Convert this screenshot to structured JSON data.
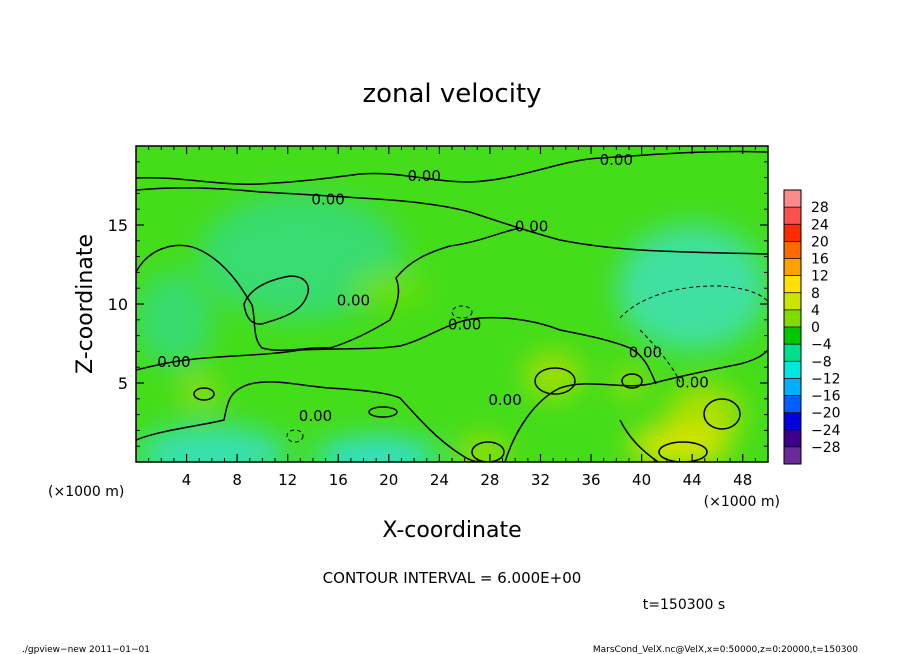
{
  "chart_data": {
    "type": "heatmap",
    "title": "zonal velocity",
    "xlabel": "X-coordinate",
    "ylabel": "Z-coordinate",
    "x_unit": "(×1000 m)",
    "xlim": [
      0,
      50
    ],
    "ylim": [
      0,
      20
    ],
    "x_ticks": [
      4,
      8,
      12,
      16,
      20,
      24,
      28,
      32,
      36,
      40,
      44,
      48
    ],
    "y_ticks": [
      5,
      10,
      15
    ],
    "contour_interval_label": "CONTOUR INTERVAL = 6.000E+00",
    "time_label": "t=150300 s",
    "contour_labels": [
      {
        "text": "0.00",
        "x": 22.8,
        "y": 17.8
      },
      {
        "text": "0.00",
        "x": 15.2,
        "y": 16.3
      },
      {
        "text": "0.00",
        "x": 38.0,
        "y": 18.8
      },
      {
        "text": "0.00",
        "x": 31.3,
        "y": 14.6
      },
      {
        "text": "0.00",
        "x": 17.2,
        "y": 9.9
      },
      {
        "text": "0.00",
        "x": 26.0,
        "y": 8.4
      },
      {
        "text": "0.00",
        "x": 3.0,
        "y": 6.0
      },
      {
        "text": "0.00",
        "x": 40.3,
        "y": 6.6
      },
      {
        "text": "0.00",
        "x": 44.0,
        "y": 4.7
      },
      {
        "text": "0.00",
        "x": 29.2,
        "y": 3.6
      },
      {
        "text": "0.00",
        "x": 14.2,
        "y": 2.6
      }
    ],
    "colorbar": {
      "levels": [
        "28",
        "24",
        "20",
        "16",
        "12",
        "8",
        "4",
        "0",
        "−4",
        "−8",
        "−12",
        "−16",
        "−20",
        "−24",
        "−28"
      ],
      "colors": [
        "#ff8a8a",
        "#ff5050",
        "#ff2a00",
        "#ff6a00",
        "#ffa000",
        "#ffe000",
        "#c8e600",
        "#80dc00",
        "#00c800",
        "#00e08c",
        "#00e8e0",
        "#00b0ff",
        "#0060ff",
        "#0000e0",
        "#3c0090",
        "#6a2a9a"
      ]
    },
    "value_field": {
      "background": "#44dd1a",
      "regions": [
        {
          "x": 44,
          "y": 11,
          "rx": 6,
          "ry": 4,
          "value": -6,
          "color": "#3fe0a0"
        },
        {
          "x": 6,
          "y": 0.5,
          "rx": 6,
          "ry": 1.8,
          "value": -6,
          "color": "#38e0b0"
        },
        {
          "x": 19,
          "y": 0.3,
          "rx": 5,
          "ry": 1.2,
          "value": -10,
          "color": "#30e0d8"
        },
        {
          "x": 13,
          "y": 13,
          "rx": 8,
          "ry": 4,
          "value": -2,
          "color": "#38dc70"
        },
        {
          "x": 3,
          "y": 9,
          "rx": 3,
          "ry": 3,
          "value": -2,
          "color": "#38dc70"
        },
        {
          "x": 33,
          "y": 5.5,
          "rx": 2.2,
          "ry": 1.4,
          "value": 6,
          "color": "#a8e000"
        },
        {
          "x": 45,
          "y": 3,
          "rx": 3,
          "ry": 2,
          "value": 6,
          "color": "#a8e000"
        },
        {
          "x": 43,
          "y": 1,
          "rx": 4,
          "ry": 1.3,
          "value": 8,
          "color": "#d8e400"
        },
        {
          "x": 27.5,
          "y": 0.6,
          "rx": 2,
          "ry": 1,
          "value": 5,
          "color": "#a0e000"
        },
        {
          "x": 5,
          "y": 4.5,
          "rx": 1.5,
          "ry": 1,
          "value": 5,
          "color": "#98e010"
        },
        {
          "x": 39,
          "y": 5,
          "rx": 1.2,
          "ry": 0.9,
          "value": 6,
          "color": "#a8e000"
        },
        {
          "x": 20,
          "y": 11,
          "rx": 3,
          "ry": 1,
          "value": 3,
          "color": "#70e000"
        }
      ]
    }
  },
  "footer": {
    "left": "./gpview−new  2011−01−01",
    "right": "MarsCond_VelX.nc@VelX,x=0:50000,z=0:20000,t=150300"
  }
}
